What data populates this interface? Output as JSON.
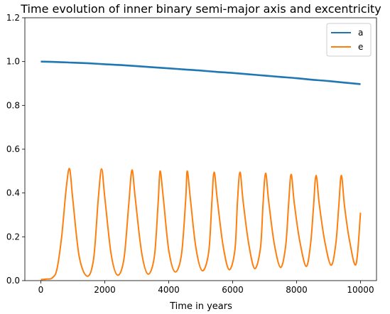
{
  "chart_data": {
    "type": "line",
    "title": "Time evolution of inner binary semi-major axis and excentricity",
    "xlabel": "Time in years",
    "ylabel": "",
    "xlim": [
      -500,
      10500
    ],
    "ylim": [
      0.0,
      1.2
    ],
    "xticks": [
      0,
      2000,
      4000,
      6000,
      8000,
      10000
    ],
    "xtick_labels": [
      "0",
      "2000",
      "4000",
      "6000",
      "8000",
      "10000"
    ],
    "yticks": [
      0.0,
      0.2,
      0.4,
      0.6,
      0.8,
      1.0,
      1.2
    ],
    "ytick_labels": [
      "0.0",
      "0.2",
      "0.4",
      "0.6",
      "0.8",
      "1.0",
      "1.2"
    ],
    "grid": false,
    "legend_position": "upper right",
    "series": [
      {
        "name": "a",
        "color": "#1f77b4",
        "x": [
          0,
          500,
          1000,
          1500,
          2000,
          2500,
          3000,
          3500,
          4000,
          4500,
          5000,
          5500,
          6000,
          6500,
          7000,
          7500,
          8000,
          8500,
          9000,
          9500,
          10000
        ],
        "y": [
          1.0,
          0.998,
          0.995,
          0.992,
          0.988,
          0.984,
          0.979,
          0.974,
          0.969,
          0.964,
          0.959,
          0.953,
          0.948,
          0.942,
          0.936,
          0.93,
          0.924,
          0.917,
          0.911,
          0.904,
          0.897
        ]
      },
      {
        "name": "e",
        "color": "#ff7f0e",
        "x": [
          0,
          200,
          350,
          500,
          650,
          800,
          900,
          1000,
          1200,
          1450,
          1650,
          1800,
          1900,
          2000,
          2200,
          2400,
          2600,
          2750,
          2850,
          2950,
          3150,
          3350,
          3550,
          3670,
          3730,
          3830,
          4000,
          4200,
          4400,
          4530,
          4580,
          4680,
          4850,
          5050,
          5250,
          5350,
          5420,
          5520,
          5700,
          5890,
          6070,
          6150,
          6230,
          6330,
          6500,
          6690,
          6870,
          6950,
          7030,
          7130,
          7300,
          7500,
          7660,
          7750,
          7830,
          7930,
          8100,
          8300,
          8440,
          8530,
          8610,
          8710,
          8880,
          9080,
          9230,
          9320,
          9400,
          9500,
          9660,
          9860,
          10000
        ],
        "y": [
          0.005,
          0.007,
          0.012,
          0.05,
          0.2,
          0.43,
          0.51,
          0.37,
          0.11,
          0.02,
          0.1,
          0.38,
          0.51,
          0.38,
          0.12,
          0.025,
          0.1,
          0.35,
          0.505,
          0.38,
          0.13,
          0.03,
          0.11,
          0.36,
          0.5,
          0.38,
          0.14,
          0.04,
          0.12,
          0.37,
          0.5,
          0.37,
          0.15,
          0.045,
          0.13,
          0.36,
          0.495,
          0.37,
          0.16,
          0.05,
          0.14,
          0.36,
          0.495,
          0.36,
          0.17,
          0.055,
          0.15,
          0.35,
          0.49,
          0.36,
          0.17,
          0.06,
          0.16,
          0.35,
          0.485,
          0.35,
          0.18,
          0.065,
          0.17,
          0.34,
          0.48,
          0.35,
          0.18,
          0.07,
          0.17,
          0.34,
          0.48,
          0.34,
          0.18,
          0.075,
          0.31
        ]
      }
    ]
  }
}
